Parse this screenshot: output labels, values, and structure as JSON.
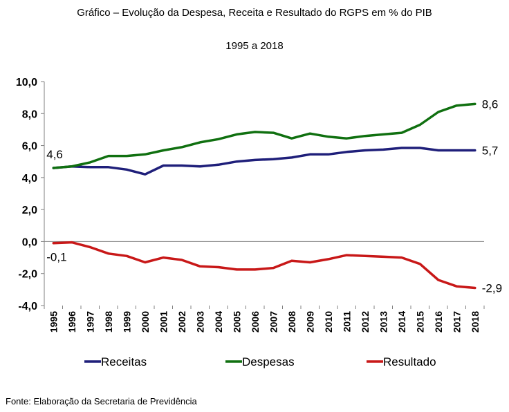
{
  "header": {
    "title": "Gráfico – Evolução da Despesa, Receita e Resultado  do RGPS em % do PIB",
    "subtitle": "1995 a 2018"
  },
  "footer": {
    "source": "Fonte: Elaboração da Secretaria de Previdência"
  },
  "chart_data": {
    "type": "line",
    "title": "Gráfico – Evolução da Despesa, Receita e Resultado  do RGPS em % do PIB",
    "subtitle": "1995 a 2018",
    "xlabel": "",
    "ylabel": "",
    "ylim": [
      -4.0,
      10.0
    ],
    "yticks": [
      "10,0",
      "8,0",
      "6,0",
      "4,0",
      "2,0",
      "0,0",
      "-2,0",
      "-4,0"
    ],
    "grid": false,
    "legend_position": "bottom",
    "categories": [
      "1995",
      "1996",
      "1997",
      "1998",
      "1999",
      "2000",
      "2001",
      "2002",
      "2003",
      "2004",
      "2005",
      "2006",
      "2007",
      "2008",
      "2009",
      "2010",
      "2011",
      "2012",
      "2013",
      "2014",
      "2015",
      "2016",
      "2017",
      "2018"
    ],
    "series": [
      {
        "name": "Receitas",
        "color": "#1f1f7a",
        "values": [
          4.6,
          4.7,
          4.65,
          4.65,
          4.5,
          4.2,
          4.75,
          4.75,
          4.7,
          4.8,
          5.0,
          5.1,
          5.15,
          5.25,
          5.45,
          5.45,
          5.6,
          5.7,
          5.75,
          5.85,
          5.85,
          5.7,
          5.7,
          5.7
        ]
      },
      {
        "name": "Despesas",
        "color": "#107010",
        "values": [
          4.6,
          4.7,
          4.95,
          5.35,
          5.35,
          5.45,
          5.7,
          5.9,
          6.2,
          6.4,
          6.7,
          6.85,
          6.8,
          6.45,
          6.75,
          6.55,
          6.45,
          6.6,
          6.7,
          6.8,
          7.3,
          8.1,
          8.5,
          8.6
        ]
      },
      {
        "name": "Resultado",
        "color": "#c81818",
        "values": [
          -0.1,
          -0.05,
          -0.35,
          -0.75,
          -0.9,
          -1.3,
          -1.0,
          -1.15,
          -1.55,
          -1.6,
          -1.75,
          -1.75,
          -1.65,
          -1.2,
          -1.3,
          -1.1,
          -0.85,
          -0.9,
          -0.95,
          -1.0,
          -1.4,
          -2.4,
          -2.8,
          -2.9
        ]
      }
    ],
    "annotations": [
      {
        "series": "Despesas",
        "index": 0,
        "text": "4,6",
        "position": "above"
      },
      {
        "series": "Despesas",
        "index": 23,
        "text": "8,6",
        "position": "right"
      },
      {
        "series": "Receitas",
        "index": 23,
        "text": "5,7",
        "position": "right"
      },
      {
        "series": "Resultado",
        "index": 0,
        "text": "-0,1",
        "position": "below"
      },
      {
        "series": "Resultado",
        "index": 23,
        "text": "-2,9",
        "position": "right"
      }
    ]
  }
}
